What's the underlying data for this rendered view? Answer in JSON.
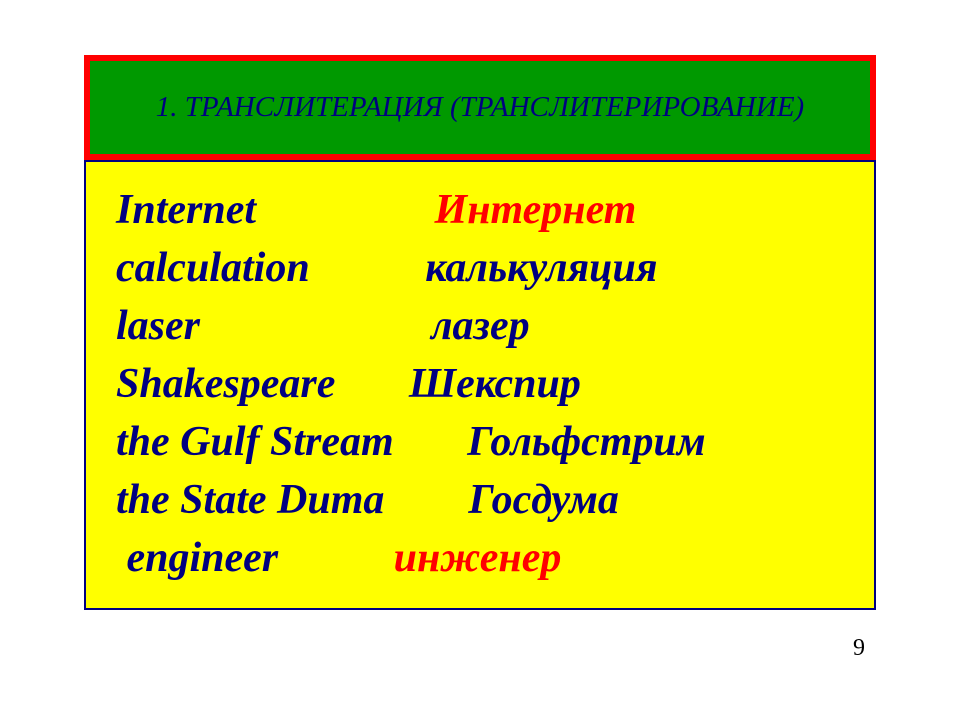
{
  "header": {
    "title": "1. ТРАНСЛИТЕРАЦИЯ (ТРАНСЛИТЕРИРОВАНИЕ)",
    "background_color": "#009900",
    "border_color": "#ff0000",
    "text_color": "#000080",
    "font_size": 29,
    "border_width": 6
  },
  "content": {
    "background_color": "#ffff00",
    "border_color": "#000080",
    "english_color": "#000080",
    "russian_red_color": "#ff0000",
    "russian_navy_color": "#000080",
    "font_size": 42,
    "rows": [
      {
        "english": "Internet",
        "gap": "                 ",
        "russian": "Интернет",
        "russian_style": "red"
      },
      {
        "english": "calculation",
        "gap": "           ",
        "russian": "калькуляция",
        "russian_style": "navy"
      },
      {
        "english": "laser",
        "gap": "                      ",
        "russian": "лазер",
        "russian_style": "navy"
      },
      {
        "english": "Shakespeare",
        "gap": "       ",
        "russian": "Шекспир",
        "russian_style": "navy"
      },
      {
        "english": "the Gulf Stream",
        "gap": "       ",
        "russian": "Гольфстрим",
        "russian_style": "navy"
      },
      {
        "english": "the State Duma",
        "gap": "        ",
        "russian": "Госдума",
        "russian_style": "navy"
      },
      {
        "english": " engineer",
        "gap": "           ",
        "russian": "инженер",
        "russian_style": "red"
      }
    ]
  },
  "page_number": "9"
}
